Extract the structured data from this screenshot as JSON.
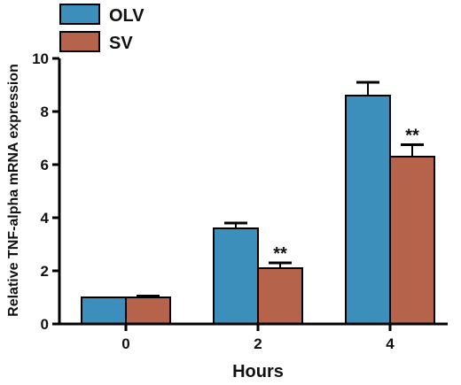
{
  "colors": {
    "OLV": "#3b8fba",
    "SV": "#b5634a",
    "axis": "#000000"
  },
  "chart_data": {
    "type": "bar",
    "xlabel": "Hours",
    "ylabel": "Relative TNF-alpha  mRNA expression",
    "categories": [
      "0",
      "2",
      "4"
    ],
    "ylim": [
      0,
      10
    ],
    "yticks": [
      "0",
      "2",
      "4",
      "6",
      "8",
      "10"
    ],
    "grid": false,
    "legend_position": "top-left",
    "series": [
      {
        "name": "OLV",
        "values": [
          1.0,
          3.6,
          8.6
        ],
        "errors": [
          0.0,
          0.2,
          0.5
        ]
      },
      {
        "name": "SV",
        "values": [
          1.0,
          2.1,
          6.3
        ],
        "errors": [
          0.05,
          0.2,
          0.45
        ]
      }
    ],
    "annotations": [
      {
        "category": "2",
        "series": "SV",
        "text": "**"
      },
      {
        "category": "4",
        "series": "SV",
        "text": "**"
      }
    ]
  }
}
